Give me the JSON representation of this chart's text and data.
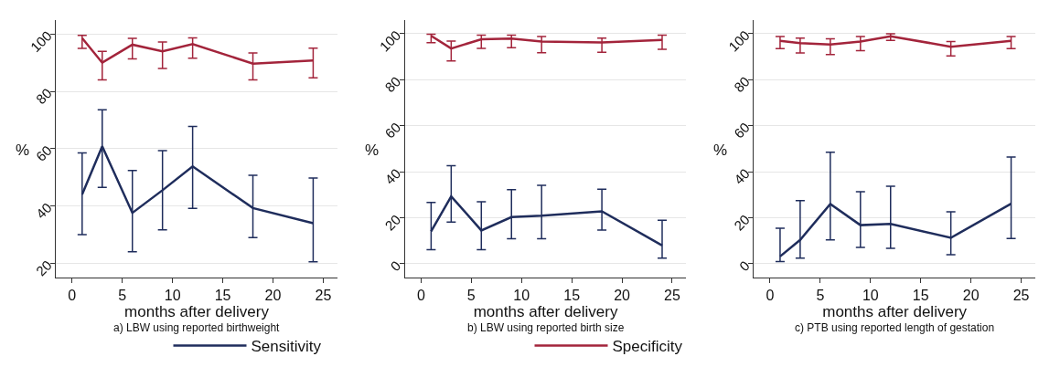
{
  "chart_data": [
    {
      "type": "line",
      "title": "a) LBW using reported birthweight",
      "xlabel": "months after delivery",
      "ylabel": "%",
      "x": [
        1,
        3,
        6,
        9,
        12,
        18,
        24
      ],
      "xlim": [
        -1.6,
        26.4
      ],
      "xticks": [
        0,
        5,
        10,
        15,
        20,
        25
      ],
      "ylim": [
        15,
        105
      ],
      "yticks": [
        20,
        40,
        60,
        80,
        100
      ],
      "grid": "y",
      "legend": "bottom",
      "marker": "none",
      "line_style": "solid",
      "series": [
        {
          "name": "Sensitivity",
          "color": "#1f2d5c",
          "values": [
            44,
            60.8,
            37.6,
            45.5,
            53.8,
            39.3,
            34
          ],
          "errors": [
            [
              30,
              58.5
            ],
            [
              46.5,
              73.6
            ],
            [
              24,
              52.4
            ],
            [
              31.7,
              59.3
            ],
            [
              39.2,
              67.8
            ],
            [
              29,
              50.7
            ],
            [
              20.5,
              49.8
            ]
          ]
        },
        {
          "name": "Specificity",
          "color": "#a3243b",
          "values": [
            98.6,
            90,
            96.3,
            94,
            96.5,
            89.7,
            90.8
          ],
          "errors": [
            [
              95,
              99.5
            ],
            [
              84,
              94
            ],
            [
              91.3,
              98.5
            ],
            [
              88,
              97.2
            ],
            [
              91.6,
              98.7
            ],
            [
              84,
              93.4
            ],
            [
              84.7,
              95.1
            ]
          ]
        }
      ]
    },
    {
      "type": "line",
      "title": "b) LBW using reported birth size",
      "xlabel": "months after delivery",
      "ylabel": "%",
      "x": [
        1,
        3,
        6,
        9,
        12,
        18,
        24
      ],
      "xlim": [
        -1.6,
        26.4
      ],
      "xticks": [
        0,
        5,
        10,
        15,
        20,
        25
      ],
      "ylim": [
        -6,
        106
      ],
      "yticks": [
        0,
        20,
        40,
        60,
        80,
        100
      ],
      "grid": "y",
      "legend": "bottom",
      "marker": "none",
      "line_style": "solid",
      "series": [
        {
          "name": "Sensitivity",
          "color": "#1f2d5c",
          "values": [
            14.1,
            29.3,
            14.5,
            20.3,
            20.9,
            22.8,
            8
          ],
          "errors": [
            [
              6.1,
              26.7
            ],
            [
              18.1,
              42.6
            ],
            [
              6.1,
              27
            ],
            [
              10.9,
              32.2
            ],
            [
              10.9,
              34.1
            ],
            [
              14.7,
              32.4
            ],
            [
              2.5,
              18.9
            ]
          ]
        },
        {
          "name": "Specificity",
          "color": "#a3243b",
          "values": [
            99,
            93.5,
            97.5,
            97.8,
            96.5,
            96.1,
            97.2
          ],
          "errors": [
            [
              96,
              99.7
            ],
            [
              88.1,
              96.7
            ],
            [
              93.6,
              99.3
            ],
            [
              93.9,
              99.3
            ],
            [
              91.7,
              98.7
            ],
            [
              91.9,
              98
            ],
            [
              93.2,
              99.3
            ]
          ]
        }
      ]
    },
    {
      "type": "line",
      "title": "c) PTB using reported length of gestation",
      "xlabel": "months after delivery",
      "ylabel": "%",
      "x": [
        1,
        3,
        6,
        9,
        12,
        18,
        24
      ],
      "xlim": [
        -1.6,
        26.4
      ],
      "xticks": [
        0,
        5,
        10,
        15,
        20,
        25
      ],
      "ylim": [
        -6,
        106
      ],
      "yticks": [
        0,
        20,
        40,
        60,
        80,
        100
      ],
      "grid": "y",
      "legend": "bottom",
      "marker": "none",
      "line_style": "solid",
      "series": [
        {
          "name": "Sensitivity",
          "color": "#1f2d5c",
          "values": [
            3.2,
            10.4,
            26,
            16.8,
            17.3,
            11.3,
            26.1
          ],
          "errors": [
            [
              1,
              15.5
            ],
            [
              2.5,
              27.4
            ],
            [
              10.4,
              48.5
            ],
            [
              7.1,
              31.3
            ],
            [
              6.7,
              33.7
            ],
            [
              4,
              22.6
            ],
            [
              11,
              46.4
            ]
          ]
        },
        {
          "name": "Specificity",
          "color": "#a3243b",
          "values": [
            96.8,
            95.8,
            95.2,
            96.5,
            98.8,
            94.3,
            96.8
          ],
          "errors": [
            [
              93.5,
              98.7
            ],
            [
              91.6,
              98
            ],
            [
              90.9,
              97.7
            ],
            [
              92.6,
              98.7
            ],
            [
              97,
              99.9
            ],
            [
              90.3,
              96.5
            ],
            [
              93.5,
              98.7
            ]
          ]
        }
      ]
    }
  ]
}
